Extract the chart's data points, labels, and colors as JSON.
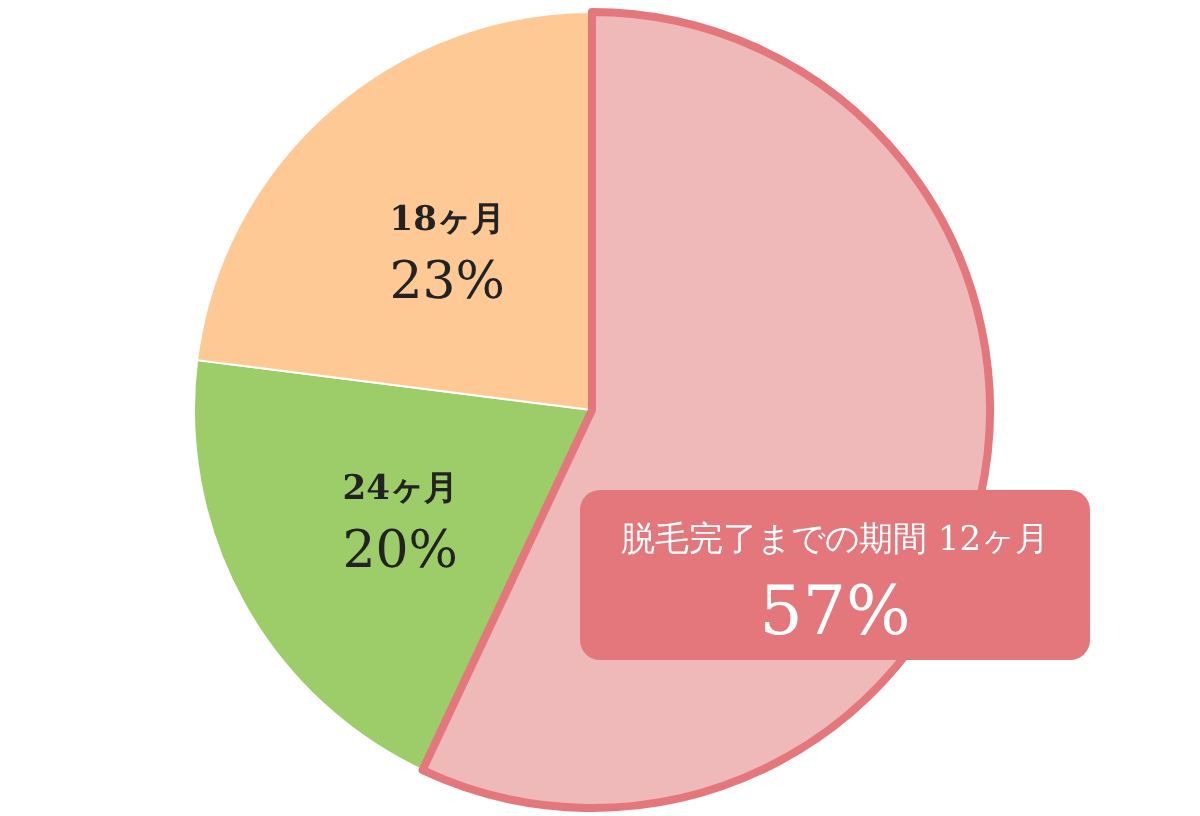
{
  "chart_data": {
    "type": "pie",
    "categories": [
      "脱毛完了までの期間 12ヶ月",
      "24ヶ月",
      "18ヶ月"
    ],
    "values": [
      57,
      20,
      23
    ],
    "colors": [
      "#efb8b9",
      "#9dcd68",
      "#fec994"
    ],
    "value_labels": [
      "57%",
      "20%",
      "23%"
    ]
  }
}
